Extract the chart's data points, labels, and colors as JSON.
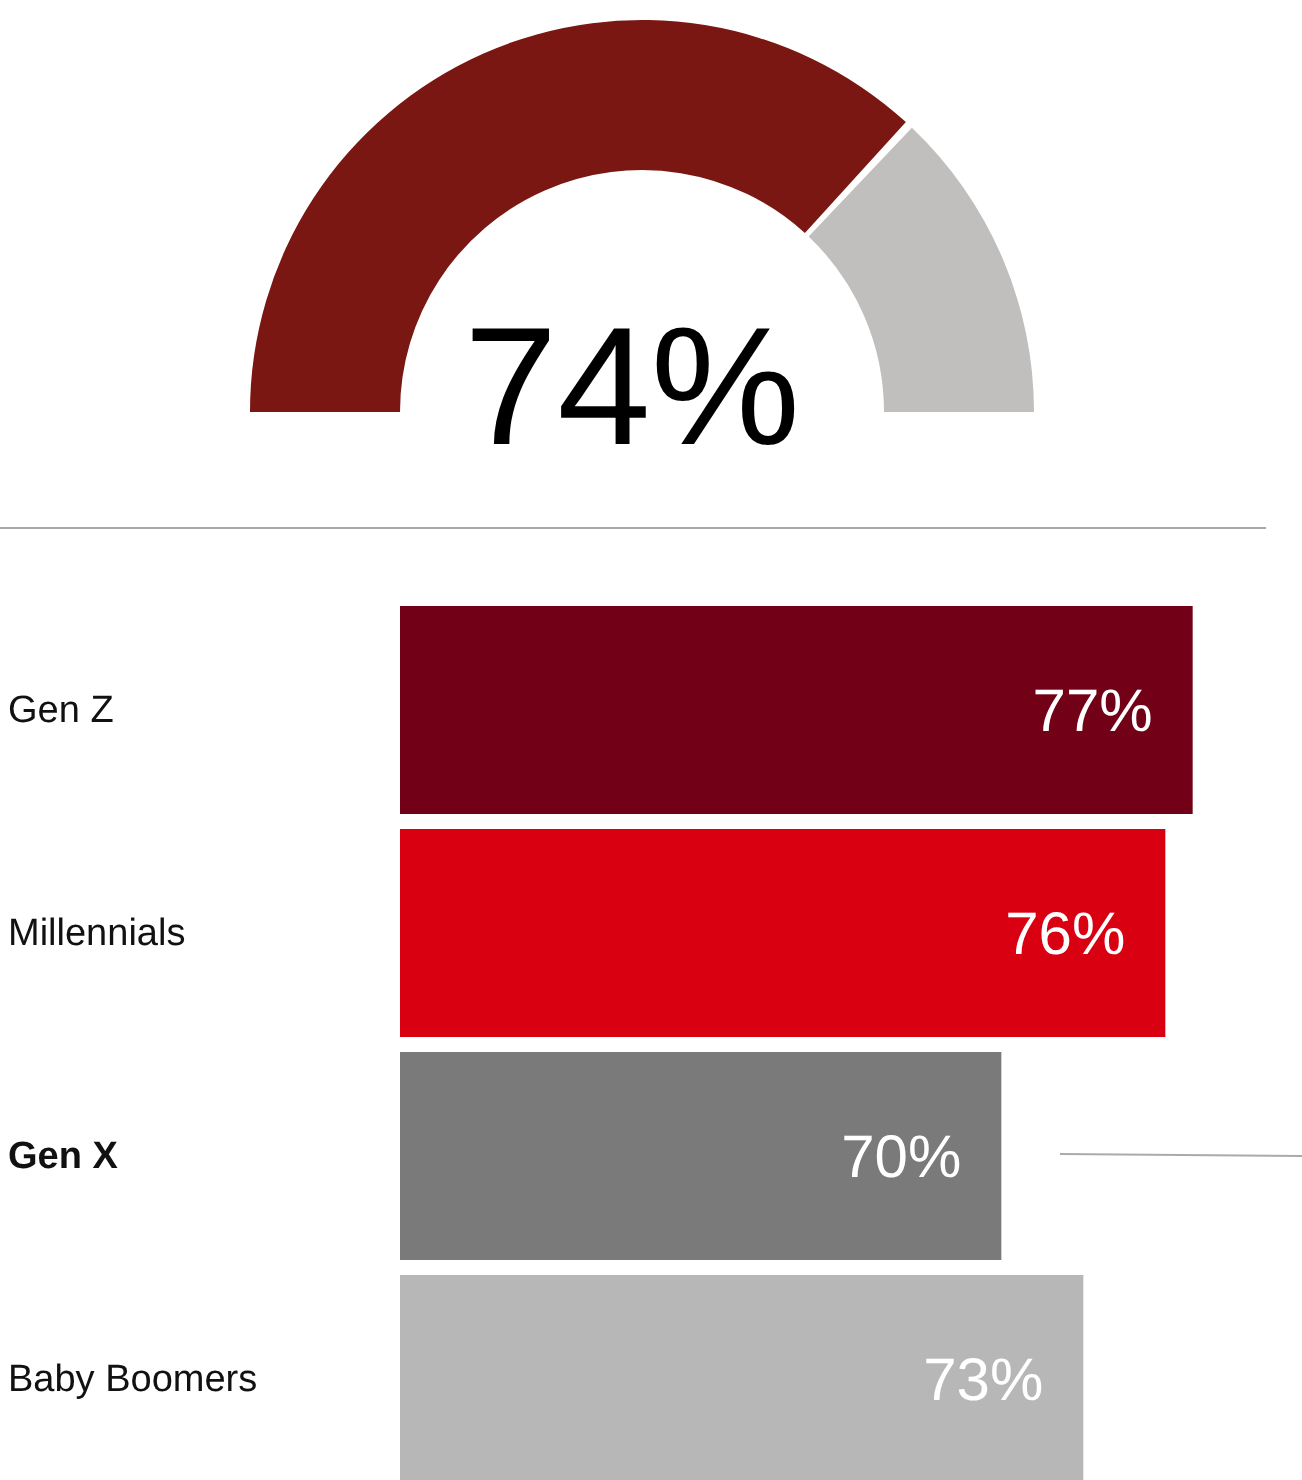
{
  "chart_data": [
    {
      "type": "donut",
      "categories": [
        null,
        null
      ],
      "values": [
        74,
        26
      ],
      "colors": [
        "#7a1712",
        "#c0bfbe"
      ],
      "value_labels": [
        "74%",
        null
      ]
    },
    {
      "type": "bar",
      "orientation": "horizontal",
      "categories": [
        "Gen Z",
        "Millennials",
        "Gen X",
        "Baby Boomers"
      ],
      "values": [
        77,
        76,
        70,
        73
      ],
      "colors": [
        "#720016",
        "#d90012",
        "#7a7a7a",
        "#b7b7b7"
      ],
      "value_labels": [
        "77%",
        "76%",
        "70%",
        "73%"
      ],
      "xlim": [
        48,
        81
      ],
      "tick_labels": "y"
    }
  ]
}
